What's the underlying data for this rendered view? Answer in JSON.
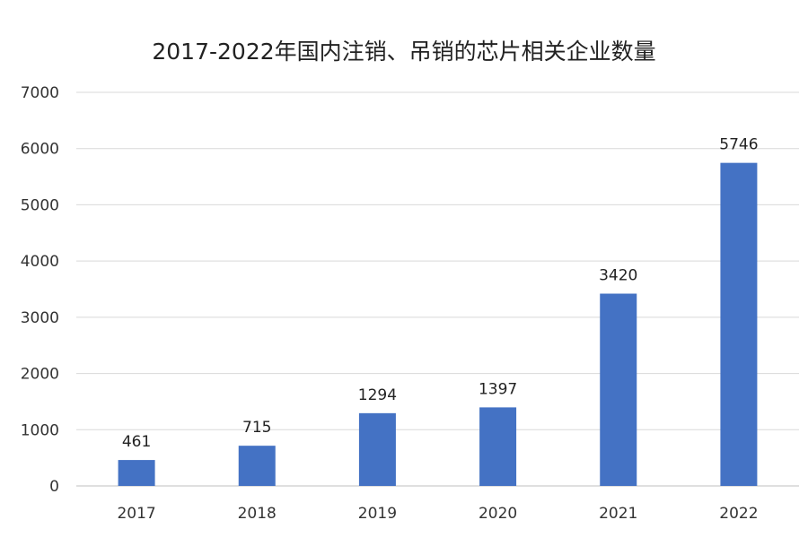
{
  "chart_data": {
    "type": "bar",
    "title": "2017-2022年国内注销、吊销的芯片相关企业数量",
    "categories": [
      "2017",
      "2018",
      "2019",
      "2020",
      "2021",
      "2022"
    ],
    "values": [
      461,
      715,
      1294,
      1397,
      3420,
      5746
    ],
    "ylim": [
      0,
      7000
    ],
    "yticks": [
      0,
      1000,
      2000,
      3000,
      4000,
      5000,
      6000,
      7000
    ],
    "xlabel": "",
    "ylabel": "",
    "grid": true,
    "legend": "none",
    "colors": {
      "bar": "#4472C4",
      "grid": "#d9d9d9",
      "axis": "#bfbfbf"
    }
  }
}
